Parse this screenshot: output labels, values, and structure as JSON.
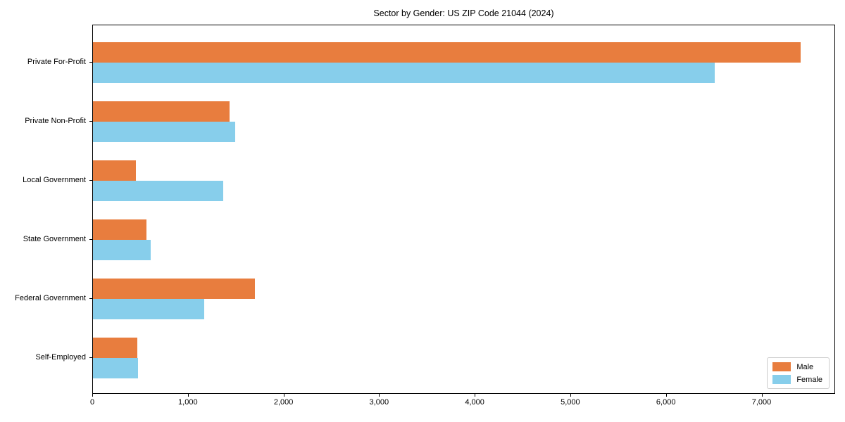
{
  "title": "Sector by Gender: US ZIP Code 21044 (2024)",
  "colors": {
    "male": "#e87d3e",
    "female": "#87ceeb",
    "spine": "#000000",
    "legend_border": "#cccccc",
    "text": "#000000",
    "background": "#ffffff"
  },
  "chart_data": {
    "type": "bar",
    "orientation": "horizontal",
    "title": "Sector by Gender: US ZIP Code 21044 (2024)",
    "categories": [
      "Private For-Profit",
      "Private Non-Profit",
      "Local Government",
      "State Government",
      "Federal Government",
      "Self-Employed"
    ],
    "series": [
      {
        "name": "Male",
        "color": "#e87d3e",
        "values": [
          7400,
          1430,
          450,
          560,
          1690,
          460
        ]
      },
      {
        "name": "Female",
        "color": "#87ceeb",
        "values": [
          6500,
          1490,
          1360,
          600,
          1160,
          470
        ]
      }
    ],
    "xlabel": "",
    "ylabel": "",
    "xlim": [
      0,
      7770
    ],
    "xticks": [
      0,
      1000,
      2000,
      3000,
      4000,
      5000,
      6000,
      7000
    ],
    "xtick_labels": [
      "0",
      "1,000",
      "2,000",
      "3,000",
      "4,000",
      "5,000",
      "6,000",
      "7,000"
    ],
    "grid": false,
    "legend": {
      "position": "lower right"
    }
  }
}
